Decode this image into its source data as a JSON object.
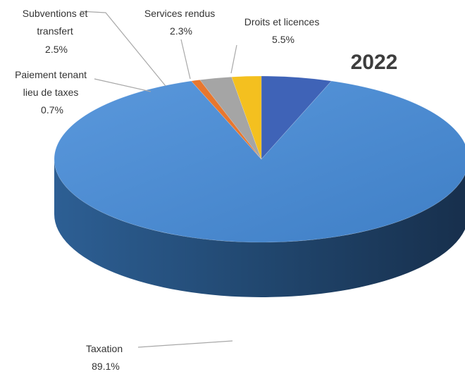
{
  "chart_data": {
    "type": "pie",
    "title": "2022",
    "legend": "none",
    "slices": [
      {
        "name": "Droits et licences",
        "label": "Droits et licences",
        "value_label": "5.5%",
        "value": 5.5,
        "color": "#3f63b7"
      },
      {
        "name": "Taxation",
        "label": "Taxation",
        "value_label": "89.1%",
        "value": 89.1,
        "color": "#4f8fd6"
      },
      {
        "name": "Paiement tenant lieu de taxes",
        "label": "Paiement tenant lieu de taxes",
        "value_label": "0.7%",
        "value": 0.7,
        "color": "#e8772e"
      },
      {
        "name": "Subventions et transfert",
        "label": "Subventions et transfert",
        "value_label": "2.5%",
        "value": 2.5,
        "color": "#a5a5a5"
      },
      {
        "name": "Services rendus",
        "label": "Services rendus",
        "value_label": "2.3%",
        "value": 2.3,
        "color": "#f4c01f"
      }
    ]
  }
}
